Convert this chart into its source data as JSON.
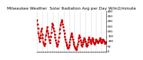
{
  "title": "Milwaukee Weather  Solar Radiation Avg per Day W/m2/minute",
  "title_fontsize": 4.2,
  "line_color": "#cc0000",
  "line_style": "--",
  "line_width": 0.7,
  "marker": "s",
  "marker_size": 1.0,
  "bg_color": "#ffffff",
  "grid_color": "#999999",
  "grid_style": ":",
  "ylim": [
    0,
    400
  ],
  "yticks": [
    0,
    50,
    100,
    150,
    200,
    250,
    300,
    350,
    400
  ],
  "ylabel_fontsize": 3.2,
  "xlabel_fontsize": 2.8,
  "y_values": [
    310,
    270,
    230,
    180,
    140,
    100,
    130,
    160,
    200,
    230,
    170,
    130,
    95,
    70,
    55,
    80,
    120,
    160,
    200,
    240,
    210,
    180,
    150,
    110,
    85,
    110,
    150,
    190,
    240,
    280,
    260,
    230,
    200,
    170,
    140,
    110,
    85,
    65,
    50,
    70,
    100,
    140,
    180,
    220,
    260,
    290,
    310,
    295,
    270,
    240,
    210,
    180,
    150,
    120,
    95,
    75,
    55,
    40,
    30,
    45,
    65,
    90,
    120,
    150,
    180,
    170,
    145,
    120,
    95,
    70,
    50,
    35,
    25,
    20,
    30,
    50,
    75,
    100,
    130,
    160,
    140,
    115,
    90,
    65,
    50,
    70,
    95,
    115,
    130,
    120,
    100,
    80,
    60,
    50,
    65,
    90,
    120,
    140,
    120,
    100,
    80,
    95,
    115,
    130,
    120,
    100,
    85,
    75,
    85,
    100,
    120,
    115,
    100,
    90,
    85,
    100,
    115,
    130,
    120,
    100,
    85,
    95,
    110,
    120,
    115,
    100,
    90,
    80,
    85,
    95
  ],
  "vgrid_interval": 10,
  "n_points": 130
}
